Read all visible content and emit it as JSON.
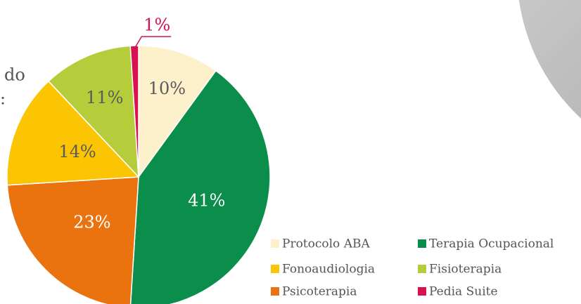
{
  "chart_data": {
    "type": "pie",
    "annotations": [
      "do",
      ":"
    ],
    "categories": [
      "Protocolo ABA",
      "Terapia Ocupacional",
      "Psicoterapia",
      "Fonoaudiologia",
      "Fisioterapia",
      "Pedia Suite"
    ],
    "values": [
      10,
      41,
      23,
      14,
      11,
      1
    ],
    "value_labels": [
      "10%",
      "41%",
      "23%",
      "14%",
      "11%",
      "1%"
    ],
    "colors": [
      "#fdf1cb",
      "#0b8e4b",
      "#ea730f",
      "#fbc503",
      "#b6cd3b",
      "#d7124f"
    ],
    "label_colors": [
      "#5a5a5a",
      "#ffffff",
      "#ffffff",
      "#5a5a5a",
      "#5a5a5a",
      "#d7124f"
    ],
    "legend": "bottom-right"
  }
}
